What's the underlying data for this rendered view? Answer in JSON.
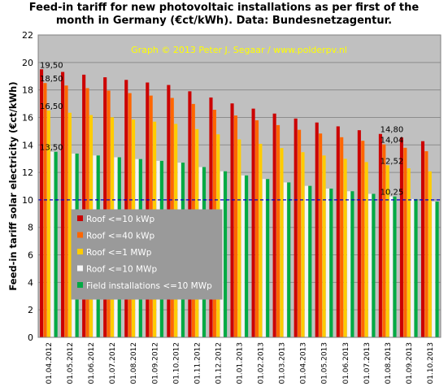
{
  "chart_data": {
    "type": "bar",
    "title_line1": "Feed-in tariff for new photovoltaic installations as per first of the",
    "title_line2": "month in Germany (€ct/kWh). Data: Bundesnetzagentur.",
    "credit": "Graph © 2013 Peter J. Segaar / www.polderpv.nl",
    "ylabel": "Feed-in tariff solar electricity (€ct/kWh)",
    "ylim": [
      0,
      22
    ],
    "yticks": [
      "0",
      "2",
      "4",
      "6",
      "8",
      "10",
      "12",
      "14",
      "16",
      "18",
      "20",
      "22"
    ],
    "grid": true,
    "legend_position": "left-middle",
    "reference_line": 10,
    "categories": [
      "01.04.2012",
      "01.05.2012",
      "01.06.2012",
      "01.07.2012",
      "01.08.2012",
      "01.09.2012",
      "01.10.2012",
      "01.11.2012",
      "01.12.2012",
      "01.01.2013",
      "01.02.2013",
      "01.03.2013",
      "01.04.2013",
      "01.05.2013",
      "01.06.2013",
      "01.07.2013",
      "01.08.2013",
      "01.09.2013",
      "01.10.2013"
    ],
    "series": [
      {
        "name": "Roof <=10 kWp",
        "color": "#cc0000",
        "values": [
          19.5,
          19.31,
          19.11,
          18.92,
          18.73,
          18.54,
          18.36,
          17.9,
          17.45,
          17.02,
          16.64,
          16.28,
          15.92,
          15.63,
          15.35,
          15.07,
          14.8,
          14.54,
          14.27
        ]
      },
      {
        "name": "Roof <=40 kWp",
        "color": "#ff6600",
        "values": [
          18.5,
          18.32,
          18.13,
          17.95,
          17.77,
          17.59,
          17.42,
          16.98,
          16.56,
          16.14,
          15.79,
          15.44,
          15.1,
          14.83,
          14.56,
          14.3,
          14.04,
          13.79,
          13.54
        ]
      },
      {
        "name": "Roof <=1 MWp",
        "color": "#ffcc00",
        "values": [
          16.5,
          16.34,
          16.17,
          16.01,
          15.85,
          15.69,
          15.53,
          15.15,
          14.77,
          14.4,
          14.08,
          13.77,
          13.47,
          13.23,
          12.99,
          12.75,
          12.52,
          12.3,
          12.08
        ]
      },
      {
        "name": "Roof <=10 MWp",
        "color": "#f5f5f5",
        "values": [
          13.5,
          13.37,
          13.23,
          13.1,
          12.97,
          12.84,
          12.71,
          12.39,
          12.08,
          11.78,
          11.52,
          11.27,
          11.02,
          10.82,
          10.63,
          10.44,
          10.25,
          10.06,
          9.88
        ]
      },
      {
        "name": "Field installations <=10 MWp",
        "color": "#00aa44",
        "values": [
          13.5,
          13.37,
          13.23,
          13.1,
          12.97,
          12.84,
          12.71,
          12.39,
          12.08,
          11.78,
          11.52,
          11.27,
          11.02,
          10.82,
          10.63,
          10.44,
          10.25,
          10.06,
          9.88
        ]
      }
    ],
    "annotations": [
      {
        "text": "19,50",
        "category": "01.04.2012",
        "value": 19.5
      },
      {
        "text": "18,50",
        "category": "01.04.2012",
        "value": 18.5
      },
      {
        "text": "16,50",
        "category": "01.04.2012",
        "value": 16.5
      },
      {
        "text": "13,50",
        "category": "01.04.2012",
        "value": 13.5
      },
      {
        "text": "14,80",
        "category": "01.08.2013",
        "value": 14.8
      },
      {
        "text": "14,04",
        "category": "01.08.2013",
        "value": 14.04
      },
      {
        "text": "12,52",
        "category": "01.08.2013",
        "value": 12.52
      },
      {
        "text": "10,25",
        "category": "01.08.2013",
        "value": 10.25
      }
    ]
  }
}
